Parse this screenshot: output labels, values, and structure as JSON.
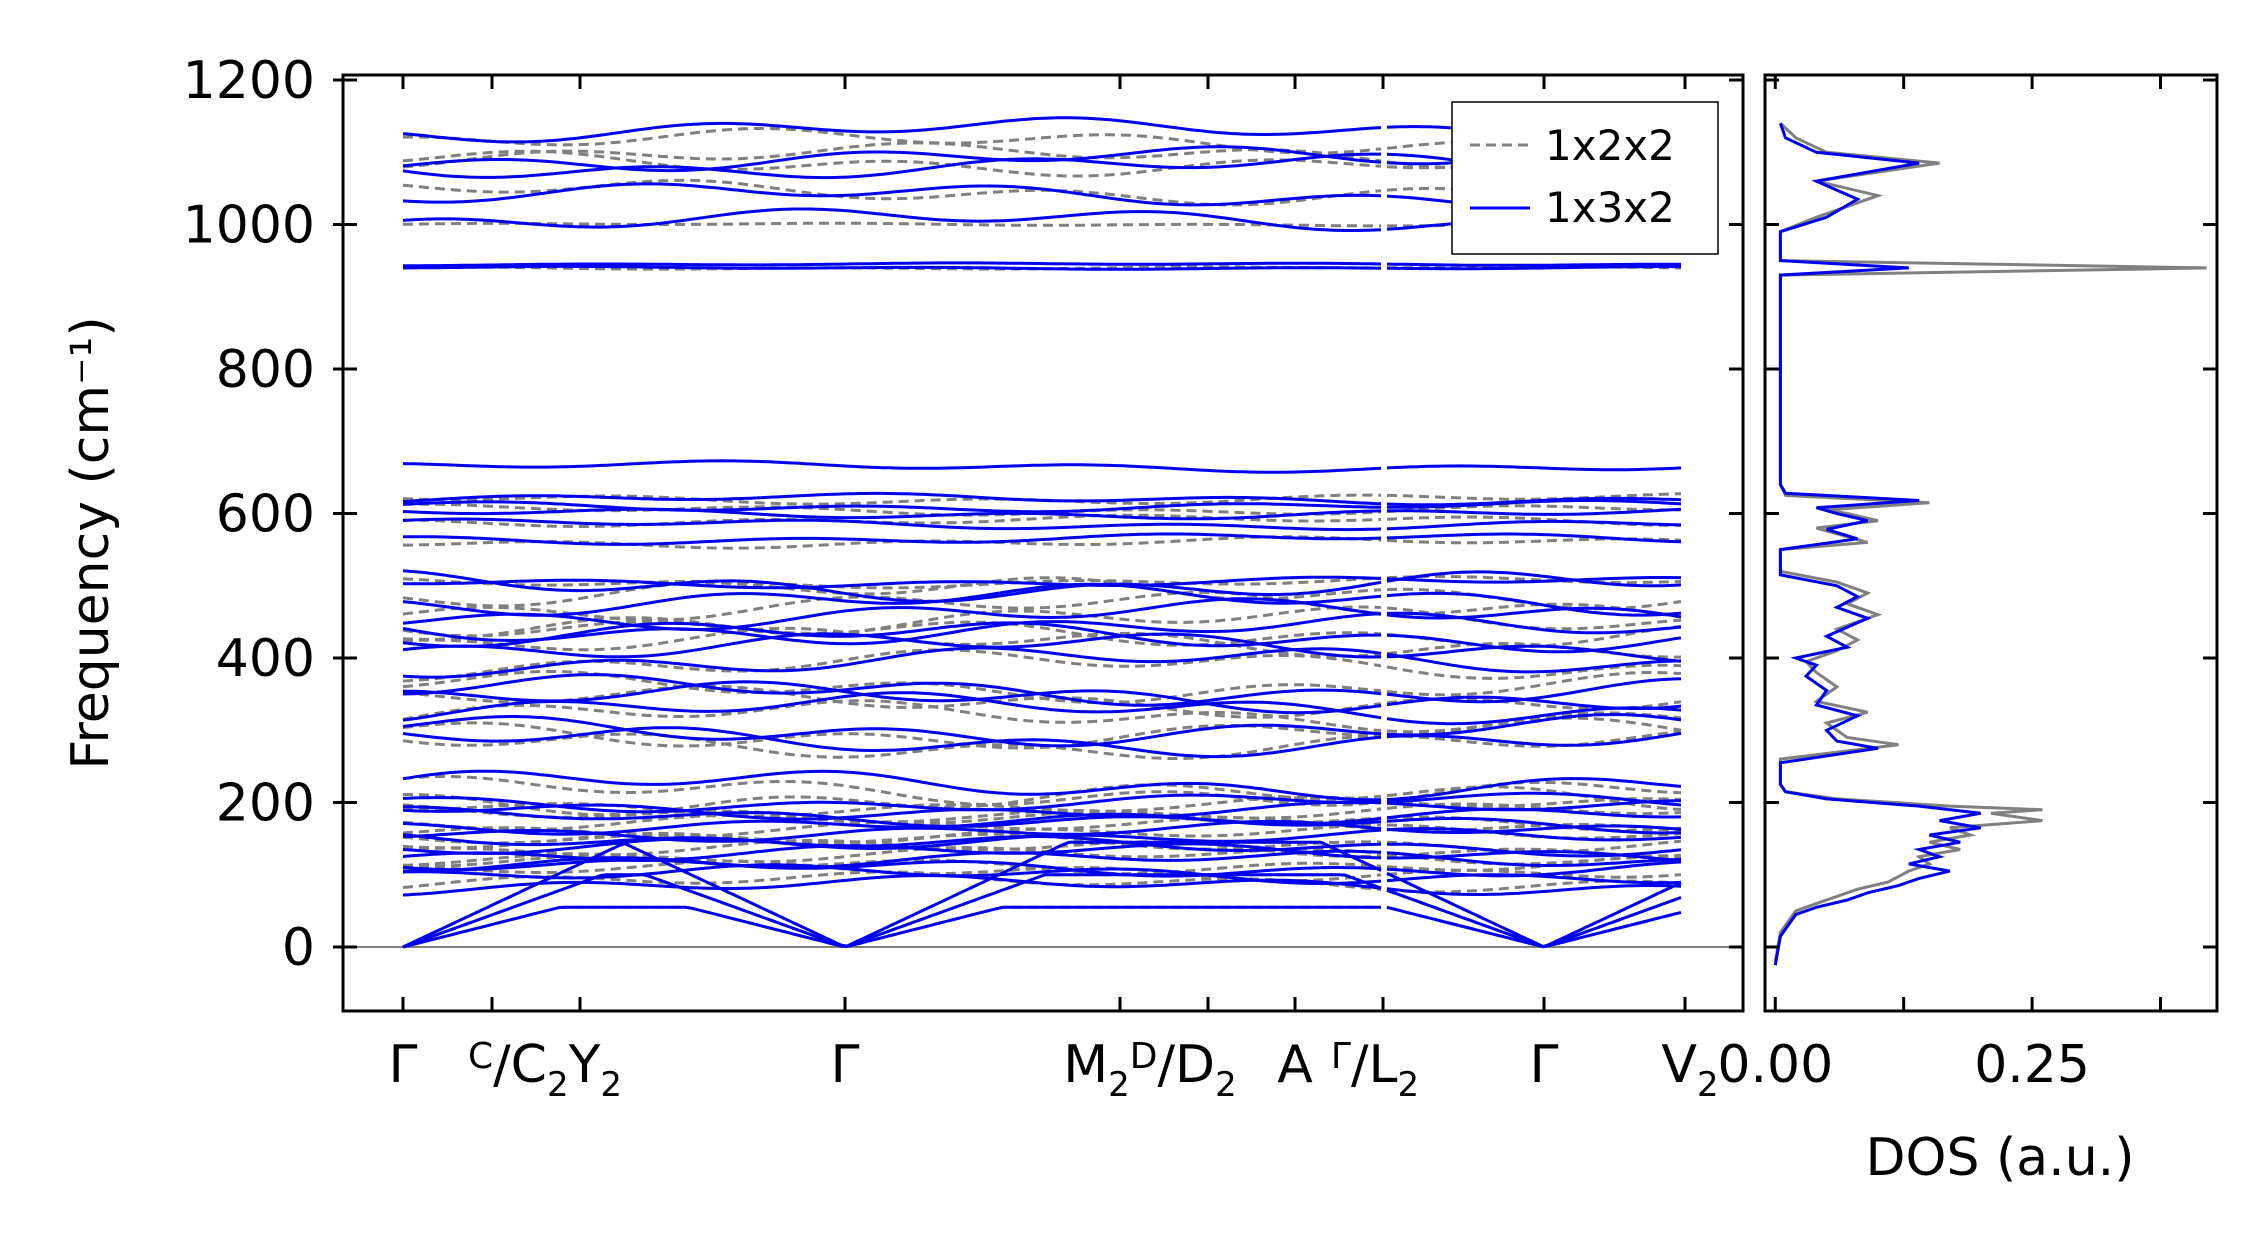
{
  "chart_data": [
    {
      "type": "line",
      "title": "",
      "ylabel": "Frequency (cm⁻¹)",
      "ylim": [
        -80,
        1220
      ],
      "yticks": [
        0,
        200,
        400,
        600,
        800,
        1000,
        1200
      ],
      "xtick_labels": [
        {
          "main": "Γ",
          "sub": ""
        },
        {
          "sup": "C",
          "main": "/C",
          "sub": "2",
          "suffix": "Y",
          "suffix_sub": "2"
        },
        {
          "main": "Γ",
          "sub": ""
        },
        {
          "main": "M",
          "sub": "2",
          "sup2": "D",
          "main2": "/D",
          "sub2": "2"
        },
        {
          "main": "A",
          "sub": ""
        },
        {
          "sup": "Γ",
          "main": "/L",
          "sub": "2"
        },
        {
          "main": "Γ",
          "sub": ""
        },
        {
          "main": "V",
          "sub": "2"
        }
      ],
      "legend": {
        "position": "top-right",
        "entries": [
          "1x2x2",
          "1x3x2"
        ]
      },
      "series": [
        {
          "name": "1x2x2",
          "color": "#808080",
          "style": "dashed"
        },
        {
          "name": "1x3x2",
          "color": "#0000ee",
          "style": "solid"
        }
      ],
      "band_levels_gamma": [
        0,
        0,
        0,
        85,
        100,
        110,
        120,
        130,
        140,
        150,
        160,
        170,
        180,
        190,
        200,
        225,
        285,
        300,
        330,
        345,
        355,
        395,
        415,
        430,
        440,
        460,
        480,
        500,
        505,
        565,
        585,
        600,
        610,
        620,
        665,
        940,
        945,
        1005,
        1040,
        1080,
        1090,
        1130
      ],
      "gray_band_levels": [
        0,
        0,
        0,
        90,
        105,
        115,
        125,
        135,
        145,
        155,
        165,
        175,
        185,
        195,
        205,
        215,
        280,
        295,
        320,
        340,
        360,
        390,
        420,
        435,
        450,
        470,
        490,
        505,
        560,
        590,
        605,
        620,
        940,
        1000,
        1045,
        1085,
        1095,
        1115
      ]
    },
    {
      "type": "line",
      "title": "",
      "xlabel": "DOS (a.u.)",
      "xticks": [
        "0.00",
        "0.25"
      ],
      "xlim": [
        -0.01,
        0.43
      ],
      "ylim": [
        -80,
        1220
      ],
      "series": [
        {
          "name": "1x2x2",
          "color": "#808080",
          "points": [
            [
              0.0,
              -20
            ],
            [
              0.005,
              20
            ],
            [
              0.02,
              50
            ],
            [
              0.04,
              60
            ],
            [
              0.06,
              70
            ],
            [
              0.08,
              80
            ],
            [
              0.11,
              90
            ],
            [
              0.13,
              105
            ],
            [
              0.15,
              115
            ],
            [
              0.14,
              125
            ],
            [
              0.18,
              135
            ],
            [
              0.15,
              145
            ],
            [
              0.19,
              155
            ],
            [
              0.17,
              165
            ],
            [
              0.26,
              175
            ],
            [
              0.21,
              185
            ],
            [
              0.26,
              190
            ],
            [
              0.17,
              195
            ],
            [
              0.06,
              205
            ],
            [
              0.01,
              215
            ],
            [
              0.005,
              225
            ],
            [
              0.005,
              260
            ],
            [
              0.12,
              280
            ],
            [
              0.07,
              290
            ],
            [
              0.05,
              310
            ],
            [
              0.09,
              325
            ],
            [
              0.04,
              340
            ],
            [
              0.06,
              360
            ],
            [
              0.04,
              380
            ],
            [
              0.03,
              395
            ],
            [
              0.06,
              410
            ],
            [
              0.08,
              425
            ],
            [
              0.06,
              440
            ],
            [
              0.1,
              460
            ],
            [
              0.07,
              475
            ],
            [
              0.09,
              490
            ],
            [
              0.06,
              505
            ],
            [
              0.005,
              520
            ],
            [
              0.005,
              550
            ],
            [
              0.09,
              560
            ],
            [
              0.04,
              580
            ],
            [
              0.1,
              590
            ],
            [
              0.07,
              600
            ],
            [
              0.05,
              605
            ],
            [
              0.15,
              615
            ],
            [
              0.01,
              625
            ],
            [
              0.005,
              640
            ],
            [
              0.005,
              930
            ],
            [
              0.42,
              940
            ],
            [
              0.005,
              950
            ],
            [
              0.005,
              990
            ],
            [
              0.04,
              1010
            ],
            [
              0.1,
              1040
            ],
            [
              0.04,
              1060
            ],
            [
              0.16,
              1085
            ],
            [
              0.05,
              1100
            ],
            [
              0.02,
              1120
            ],
            [
              0.005,
              1140
            ]
          ]
        },
        {
          "name": "1x3x2",
          "color": "#0000ee",
          "points": [
            [
              0.0,
              -25
            ],
            [
              0.005,
              15
            ],
            [
              0.02,
              45
            ],
            [
              0.04,
              55
            ],
            [
              0.07,
              65
            ],
            [
              0.09,
              75
            ],
            [
              0.12,
              85
            ],
            [
              0.14,
              95
            ],
            [
              0.17,
              105
            ],
            [
              0.13,
              115
            ],
            [
              0.16,
              125
            ],
            [
              0.14,
              135
            ],
            [
              0.18,
              145
            ],
            [
              0.15,
              155
            ],
            [
              0.2,
              165
            ],
            [
              0.16,
              175
            ],
            [
              0.2,
              185
            ],
            [
              0.14,
              195
            ],
            [
              0.05,
              205
            ],
            [
              0.01,
              215
            ],
            [
              0.005,
              225
            ],
            [
              0.005,
              255
            ],
            [
              0.1,
              275
            ],
            [
              0.06,
              285
            ],
            [
              0.05,
              300
            ],
            [
              0.08,
              320
            ],
            [
              0.04,
              335
            ],
            [
              0.05,
              355
            ],
            [
              0.03,
              375
            ],
            [
              0.04,
              390
            ],
            [
              0.02,
              400
            ],
            [
              0.07,
              415
            ],
            [
              0.05,
              430
            ],
            [
              0.09,
              455
            ],
            [
              0.06,
              470
            ],
            [
              0.08,
              485
            ],
            [
              0.06,
              500
            ],
            [
              0.005,
              515
            ],
            [
              0.005,
              550
            ],
            [
              0.08,
              565
            ],
            [
              0.05,
              578
            ],
            [
              0.09,
              590
            ],
            [
              0.06,
              600
            ],
            [
              0.04,
              608
            ],
            [
              0.14,
              618
            ],
            [
              0.01,
              628
            ],
            [
              0.005,
              640
            ],
            [
              0.005,
              930
            ],
            [
              0.13,
              940
            ],
            [
              0.005,
              950
            ],
            [
              0.005,
              990
            ],
            [
              0.05,
              1010
            ],
            [
              0.08,
              1035
            ],
            [
              0.04,
              1060
            ],
            [
              0.14,
              1085
            ],
            [
              0.04,
              1100
            ],
            [
              0.01,
              1120
            ],
            [
              0.005,
              1140
            ]
          ]
        }
      ]
    }
  ]
}
